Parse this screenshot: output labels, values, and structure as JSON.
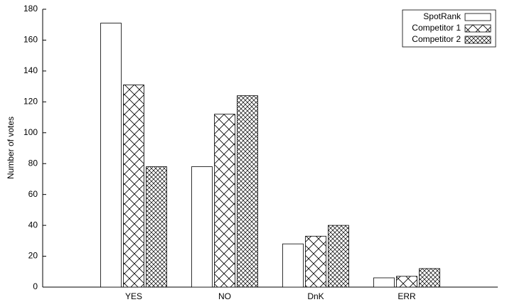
{
  "chart_data": {
    "type": "bar",
    "y_label": "Number of votes",
    "categories": [
      "YES",
      "NO",
      "DnK",
      "ERR"
    ],
    "series": [
      {
        "name": "SpotRank",
        "color": "#ffffff",
        "hatch": "none",
        "values": [
          171,
          78,
          28,
          6
        ]
      },
      {
        "name": "Competitor 1",
        "color": "#ffffff",
        "hatch": "cross",
        "values": [
          131,
          112,
          33,
          7
        ]
      },
      {
        "name": "Competitor 2",
        "color": "#ffffff",
        "hatch": "dense-cross",
        "values": [
          78,
          124,
          40,
          12
        ]
      }
    ],
    "ylim": [
      0,
      180
    ],
    "yticks": [
      0,
      20,
      40,
      60,
      80,
      100,
      120,
      140,
      160,
      180
    ],
    "legend": "top-right"
  }
}
